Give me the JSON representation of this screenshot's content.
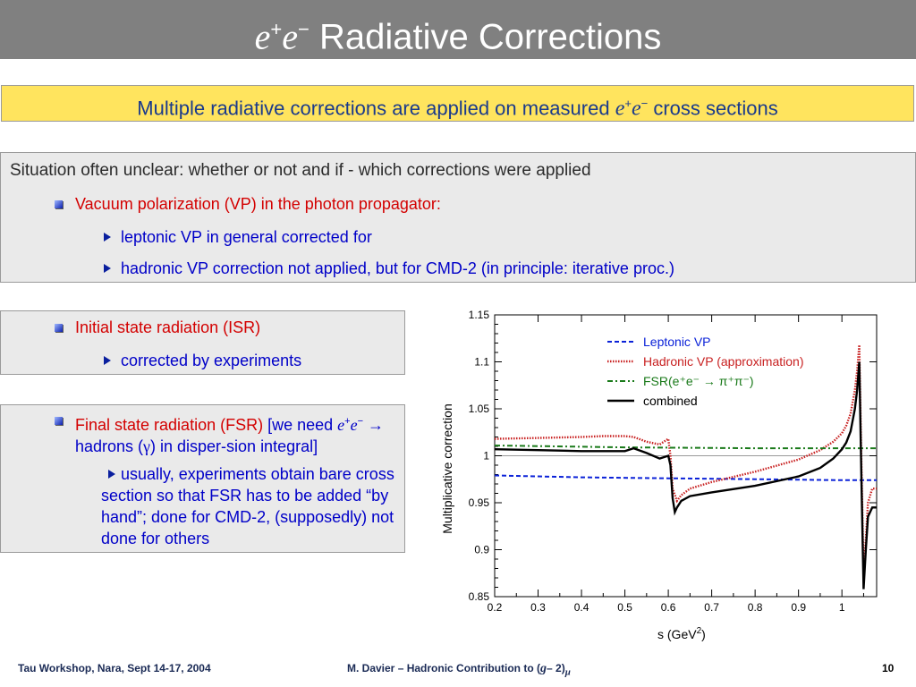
{
  "slide": {
    "title_e1": "e",
    "title_sup1": "+",
    "title_e2": "e",
    "title_sup2": "−",
    "title_rest": " Radiative Corrections",
    "banner_text": "Multiple radiative corrections are applied on measured ",
    "banner_e1": "e",
    "banner_sup1": "+",
    "banner_e2": "e",
    "banner_sup2": "−",
    "banner_tail": " cross sections",
    "box1": {
      "heading": "Situation often unclear: whether or not  and if - which corrections were applied",
      "item": "Vacuum polarization (VP) in the photon propagator:",
      "sub1": "leptonic VP in general corrected for",
      "sub2": "hadronic VP correction not applied, but for CMD-2 (in principle: iterative proc.)"
    },
    "box2": {
      "item": "Initial state radiation (ISR)",
      "sub": "corrected by experiments"
    },
    "box3": {
      "item_red": "Final state radiation (FSR)",
      "item_blue": " [we need ",
      "e1": "e",
      "sup1": "+",
      "e2": "e",
      "sup2": "−",
      "arrow_text": " → hadrons (",
      "gamma": "γ",
      "tail": ") in disper-sion integral]",
      "sub": "usually, experiments obtain bare cross section so that FSR has to be added “by hand”; done for CMD-2, (supposedly) not done for others"
    },
    "footer": {
      "left": "Tau Workshop, Nara, Sept 14-17, 2004",
      "middle_pre": "M. Davier – Hadronic Contribution to (",
      "middle_g": "g",
      "middle_minus": "– 2)",
      "middle_mu": "μ",
      "page": "10"
    }
  },
  "chart_data": {
    "type": "line",
    "xlabel_main": "s    (GeV",
    "xlabel_sup": "2",
    "xlabel_close": ")",
    "ylabel": "Multiplicative correction",
    "xlim": [
      0.2,
      1.08
    ],
    "ylim": [
      0.85,
      1.15
    ],
    "xticks": [
      "0.2",
      "0.3",
      "0.4",
      "0.5",
      "0.6",
      "0.7",
      "0.8",
      "0.9",
      "1"
    ],
    "yticks": [
      "0.85",
      "0.9",
      "0.95",
      "1",
      "1.05",
      "1.1",
      "1.15"
    ],
    "grid": false,
    "legend_position": "top-right",
    "series": [
      {
        "name": "Leptonic VP",
        "color": "#0b22d8",
        "style": "dashed",
        "x": [
          0.2,
          0.4,
          0.6,
          0.8,
          1.0,
          1.08
        ],
        "y": [
          0.979,
          0.977,
          0.976,
          0.975,
          0.974,
          0.974
        ]
      },
      {
        "name": "Hadronic VP (approximation)",
        "color": "#c82020",
        "style": "dotted",
        "x": [
          0.2,
          0.3,
          0.4,
          0.45,
          0.5,
          0.52,
          0.55,
          0.58,
          0.6,
          0.605,
          0.61,
          0.62,
          0.63,
          0.65,
          0.7,
          0.8,
          0.9,
          0.95,
          0.98,
          1.0,
          1.01,
          1.02,
          1.03,
          1.035,
          1.04,
          1.045,
          1.05,
          1.055,
          1.06,
          1.07,
          1.08
        ],
        "y": [
          1.018,
          1.019,
          1.02,
          1.021,
          1.021,
          1.02,
          1.015,
          1.012,
          1.018,
          1.0,
          0.965,
          0.952,
          0.958,
          0.965,
          0.972,
          0.983,
          0.996,
          1.006,
          1.015,
          1.024,
          1.032,
          1.045,
          1.07,
          1.09,
          1.118,
          0.99,
          0.875,
          0.91,
          0.95,
          0.965,
          0.965
        ]
      },
      {
        "name": "FSR(e⁺e⁻ → π⁺π⁻)",
        "color": "#1a7a1a",
        "style": "dashdot",
        "x": [
          0.2,
          0.5,
          0.8,
          1.08
        ],
        "y": [
          1.011,
          1.009,
          1.008,
          1.008
        ]
      },
      {
        "name": "combined",
        "color": "#000000",
        "style": "solid",
        "x": [
          0.2,
          0.3,
          0.4,
          0.45,
          0.5,
          0.52,
          0.55,
          0.58,
          0.6,
          0.605,
          0.61,
          0.615,
          0.62,
          0.63,
          0.65,
          0.7,
          0.8,
          0.9,
          0.95,
          0.98,
          1.0,
          1.01,
          1.02,
          1.03,
          1.035,
          1.04,
          1.045,
          1.05,
          1.055,
          1.06,
          1.07,
          1.08
        ],
        "y": [
          1.007,
          1.006,
          1.005,
          1.005,
          1.005,
          1.008,
          1.003,
          0.997,
          1.0,
          0.99,
          0.955,
          0.94,
          0.945,
          0.952,
          0.957,
          0.961,
          0.968,
          0.978,
          0.987,
          0.997,
          1.007,
          1.014,
          1.026,
          1.05,
          1.07,
          1.1,
          0.975,
          0.858,
          0.9,
          0.935,
          0.945,
          0.945
        ]
      }
    ]
  }
}
